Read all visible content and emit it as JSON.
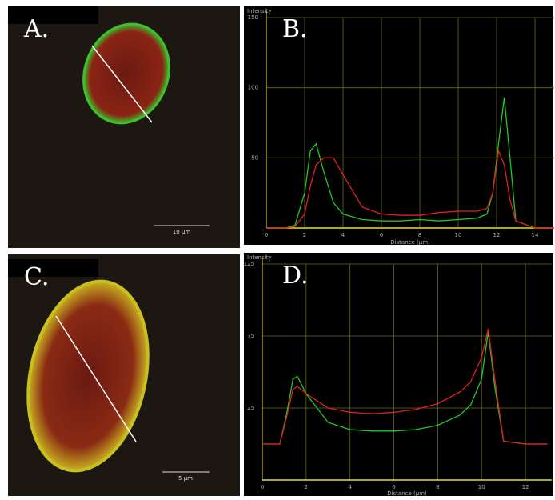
{
  "panels": {
    "a": {
      "label": "A.",
      "scale_bar": "10 µm"
    },
    "c": {
      "label": "C.",
      "scale_bar": "5 µm"
    }
  },
  "chart_data": [
    {
      "type": "line",
      "panel_label": "B.",
      "y_label": "Intensity",
      "x_label": "Distance (µm)",
      "x": [
        0,
        1,
        1.5,
        2,
        2.3,
        2.6,
        3,
        3.5,
        4,
        5,
        6,
        7,
        8,
        9,
        10,
        11,
        11.5,
        11.8,
        12.1,
        12.4,
        12.7,
        13,
        14,
        15
      ],
      "series": [
        {
          "color": "#22c82a",
          "values": [
            0,
            0,
            2,
            25,
            55,
            60,
            40,
            18,
            10,
            6,
            5,
            5,
            6,
            5,
            6,
            7,
            10,
            25,
            60,
            93,
            50,
            5,
            0,
            0
          ]
        },
        {
          "color": "#e02020",
          "values": [
            0,
            0,
            1,
            10,
            30,
            45,
            50,
            50,
            38,
            15,
            10,
            9,
            9,
            11,
            12,
            12,
            14,
            25,
            55,
            45,
            20,
            5,
            0,
            0
          ]
        }
      ],
      "xlim": [
        0,
        15
      ],
      "ylim": [
        0,
        150
      ],
      "xticks": [
        0,
        2,
        4,
        6,
        8,
        10,
        12,
        14
      ],
      "yticks": [
        50,
        100,
        150
      ],
      "grid": true
    },
    {
      "type": "line",
      "panel_label": "D.",
      "y_label": "Intensity",
      "x_label": "Distance (µm)",
      "x": [
        0,
        0.8,
        1.1,
        1.4,
        1.6,
        2,
        3,
        4,
        5,
        6,
        7,
        8,
        9,
        9.5,
        10,
        10.3,
        10.6,
        11,
        12,
        13
      ],
      "series": [
        {
          "color": "#22c82a",
          "values": [
            0,
            0,
            20,
            45,
            47,
            35,
            15,
            10,
            9,
            9,
            10,
            13,
            20,
            27,
            45,
            78,
            40,
            2,
            0,
            0
          ]
        },
        {
          "color": "#e02020",
          "values": [
            0,
            0,
            18,
            38,
            40,
            35,
            25,
            22,
            21,
            22,
            24,
            28,
            36,
            43,
            60,
            80,
            45,
            2,
            0,
            0
          ]
        }
      ],
      "xlim": [
        0,
        13.2
      ],
      "ylim": [
        -25,
        125
      ],
      "xticks": [
        0,
        2,
        4,
        6,
        8,
        10,
        12
      ],
      "yticks": [
        25,
        75,
        125
      ],
      "grid": true
    }
  ]
}
